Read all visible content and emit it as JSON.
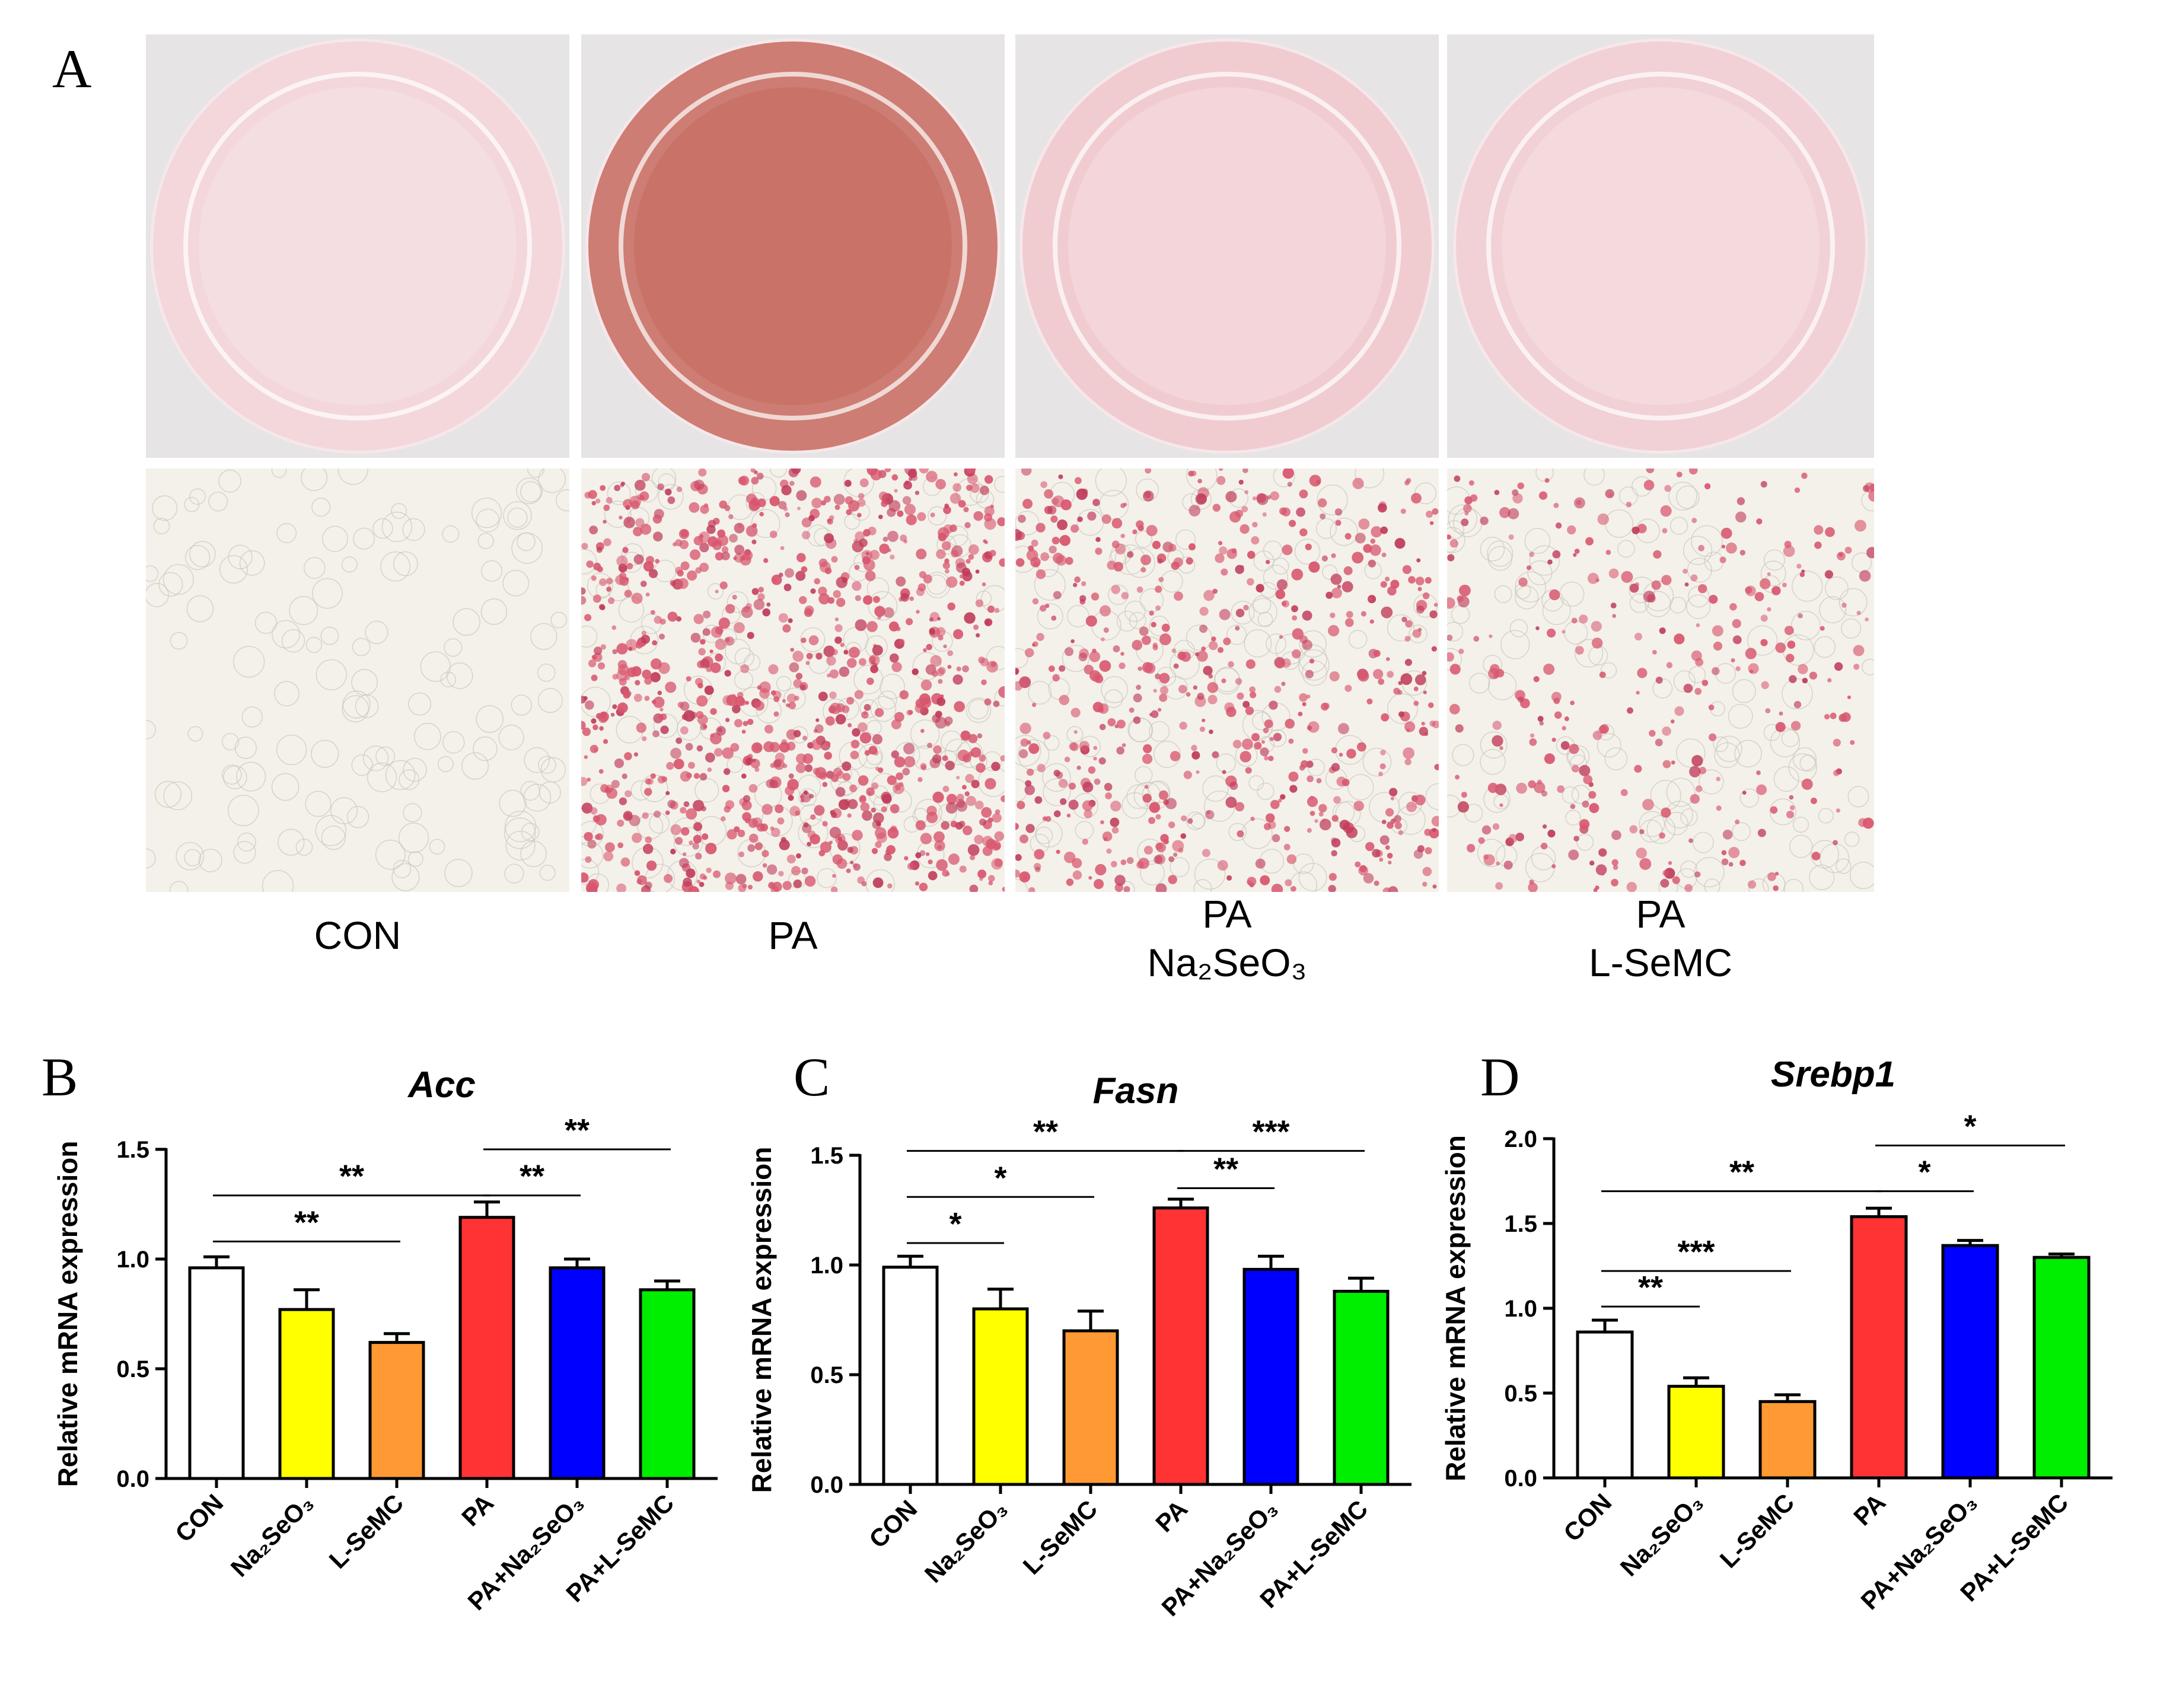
{
  "panelA": {
    "letter": "A",
    "groups": [
      {
        "lines": [
          "CON"
        ]
      },
      {
        "lines": [
          "PA"
        ]
      },
      {
        "lines": [
          "PA",
          "Na₂SeO₃"
        ]
      },
      {
        "lines": [
          "PA",
          "L-SeMC"
        ]
      }
    ],
    "dish_tints": [
      "#f2d3d8",
      "#c66a5e",
      "#efc7cc",
      "#f0ccd2"
    ],
    "micro_density": [
      0.0,
      0.9,
      0.55,
      0.3
    ]
  },
  "chart_data": [
    {
      "letter": "B",
      "type": "bar",
      "title": "Acc",
      "ylabel": "Relative mRNA expression",
      "ylim": [
        0,
        1.5
      ],
      "yticks": [
        "0.0",
        "0.5",
        "1.0",
        "1.5"
      ],
      "categories": [
        "CON",
        "Na₂SeO₃",
        "L-SeMC",
        "PA",
        "PA+Na₂SeO₃",
        "PA+L-SeMC"
      ],
      "values": [
        0.96,
        0.77,
        0.62,
        1.19,
        0.96,
        0.86
      ],
      "errors": [
        0.05,
        0.09,
        0.04,
        0.07,
        0.04,
        0.04
      ],
      "colors": [
        "#ffffff",
        "#ffff00",
        "#ff9933",
        "#ff3333",
        "#0000ff",
        "#00ee00"
      ],
      "significance": [
        {
          "from": 0,
          "to": 2,
          "y": 1.08,
          "label": "**"
        },
        {
          "from": 0,
          "to": 3,
          "y": 1.29,
          "label": "**"
        },
        {
          "from": 3,
          "to": 4,
          "y": 1.29,
          "label": "**"
        },
        {
          "from": 3,
          "to": 5,
          "y": 1.5,
          "label": "**"
        }
      ]
    },
    {
      "letter": "C",
      "type": "bar",
      "title": "Fasn",
      "ylabel": "Relative mRNA expression",
      "ylim": [
        0,
        1.5
      ],
      "yticks": [
        "0.0",
        "0.5",
        "1.0",
        "1.5"
      ],
      "categories": [
        "CON",
        "Na₂SeO₃",
        "L-SeMC",
        "PA",
        "PA+Na₂SeO₃",
        "PA+L-SeMC"
      ],
      "values": [
        0.99,
        0.8,
        0.7,
        1.26,
        0.98,
        0.88
      ],
      "errors": [
        0.05,
        0.09,
        0.09,
        0.04,
        0.06,
        0.06
      ],
      "colors": [
        "#ffffff",
        "#ffff00",
        "#ff9933",
        "#ff3333",
        "#0000ff",
        "#00ee00"
      ],
      "significance": [
        {
          "from": 0,
          "to": 1,
          "y": 1.1,
          "label": "*"
        },
        {
          "from": 0,
          "to": 2,
          "y": 1.31,
          "label": "*"
        },
        {
          "from": 3,
          "to": 4,
          "y": 1.35,
          "label": "**"
        },
        {
          "from": 0,
          "to": 3,
          "y": 1.52,
          "label": "**"
        },
        {
          "from": 3,
          "to": 5,
          "y": 1.52,
          "label": "***"
        }
      ]
    },
    {
      "letter": "D",
      "type": "bar",
      "title": "Srebp1",
      "ylabel": "Relative mRNA expression",
      "ylim": [
        0,
        2.0
      ],
      "yticks": [
        "0.0",
        "0.5",
        "1.0",
        "1.5",
        "2.0"
      ],
      "categories": [
        "CON",
        "Na₂SeO₃",
        "L-SeMC",
        "PA",
        "PA+Na₂SeO₃",
        "PA+L-SeMC"
      ],
      "values": [
        0.86,
        0.54,
        0.45,
        1.54,
        1.37,
        1.3
      ],
      "errors": [
        0.07,
        0.05,
        0.04,
        0.05,
        0.03,
        0.02
      ],
      "colors": [
        "#ffffff",
        "#ffff00",
        "#ff9933",
        "#ff3333",
        "#0000ff",
        "#00ee00"
      ],
      "significance": [
        {
          "from": 0,
          "to": 1,
          "y": 1.01,
          "label": "**"
        },
        {
          "from": 0,
          "to": 2,
          "y": 1.22,
          "label": "***"
        },
        {
          "from": 0,
          "to": 3,
          "y": 1.69,
          "label": "**"
        },
        {
          "from": 3,
          "to": 4,
          "y": 1.69,
          "label": "*"
        },
        {
          "from": 3,
          "to": 5,
          "y": 1.96,
          "label": "*"
        }
      ]
    }
  ]
}
